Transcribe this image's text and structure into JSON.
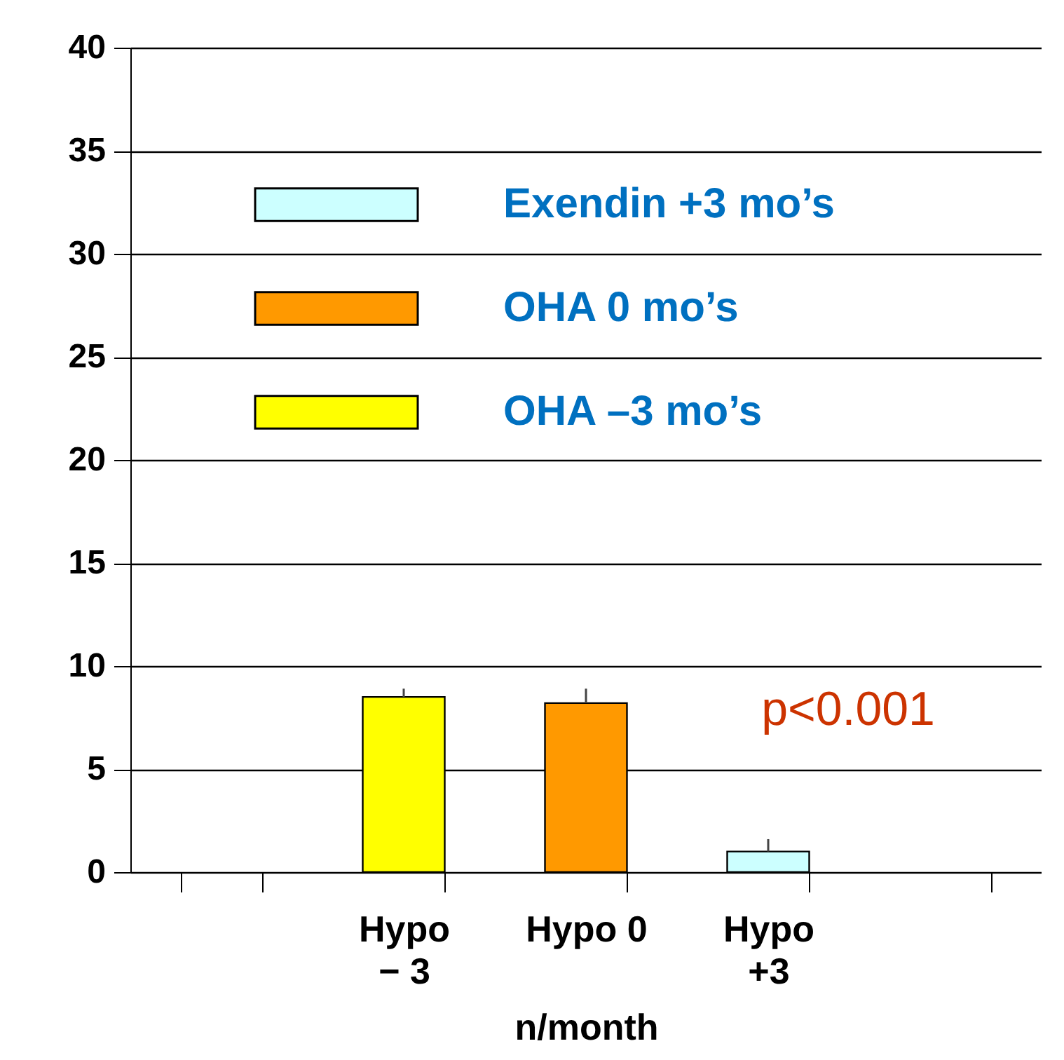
{
  "chart_data": {
    "type": "bar",
    "categories": [
      null,
      "Hypo\n− 3",
      "Hypo 0",
      "Hypo\n+3",
      null
    ],
    "series": [
      {
        "name": "Exendin +3 mo’s",
        "color": "#ccffff",
        "values": [
          null,
          null,
          null,
          1.0,
          null
        ],
        "errors": [
          null,
          null,
          null,
          [
            1.0,
            1.6
          ],
          null
        ]
      },
      {
        "name": "OHA 0 mo’s",
        "color": "#ff9900",
        "values": [
          null,
          null,
          8.2,
          null,
          null
        ],
        "errors": [
          null,
          null,
          [
            8.2,
            8.9
          ],
          null,
          null
        ]
      },
      {
        "name": "OHA –3 mo’s",
        "color": "#ffff00",
        "values": [
          null,
          8.5,
          null,
          null,
          null
        ],
        "errors": [
          null,
          [
            8.5,
            8.9
          ],
          null,
          null,
          null
        ]
      }
    ],
    "stacked": true,
    "xlabel": "n/month",
    "ylim": [
      0,
      40
    ],
    "yticks": [
      0,
      5,
      10,
      15,
      20,
      25,
      30,
      35,
      40
    ],
    "grid": "y",
    "legend": "top left",
    "annotations": [
      "p<0.001"
    ]
  }
}
